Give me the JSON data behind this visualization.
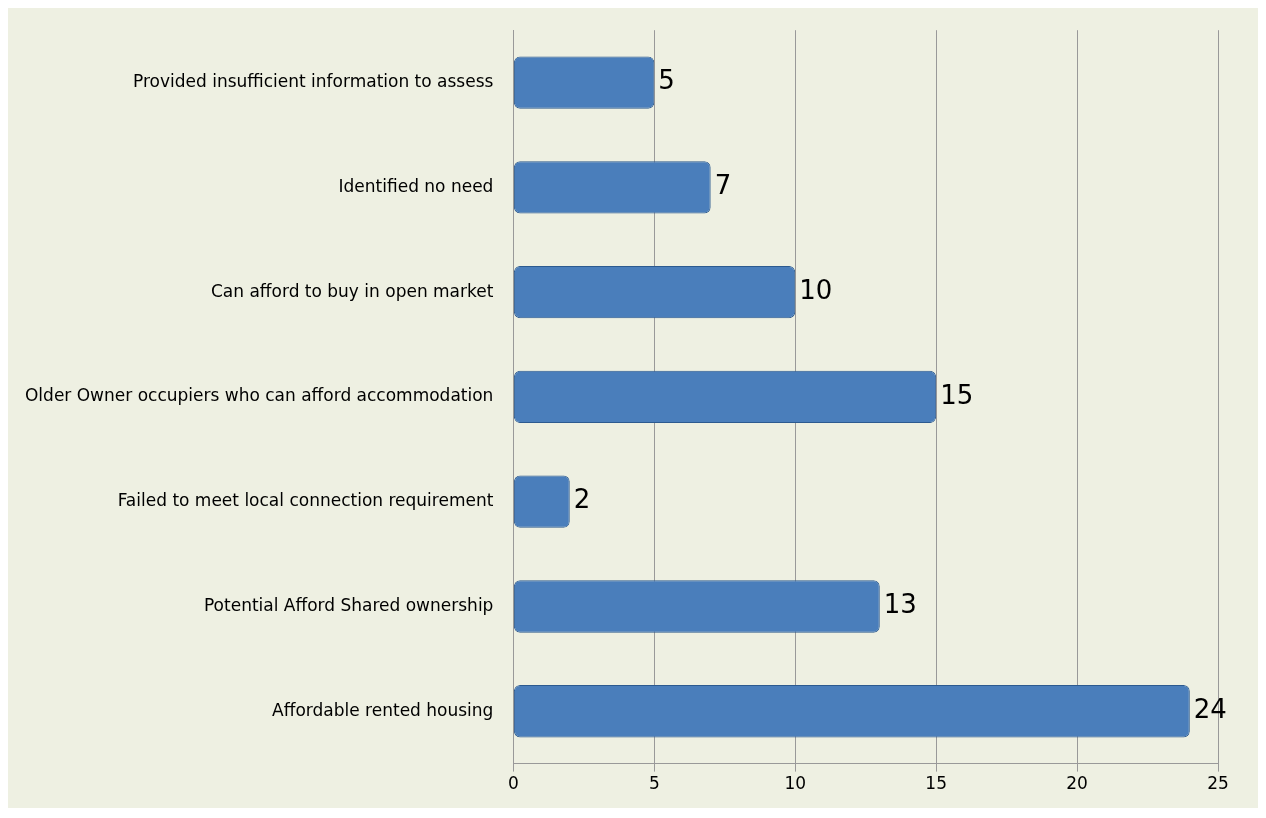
{
  "chart_data": {
    "type": "bar",
    "orientation": "horizontal",
    "categories": [
      "Provided insufficient information to assess",
      "Identified no need",
      "Can afford to buy in open market",
      "Older Owner occupiers who can afford accommodation",
      "Failed to meet local connection requirement",
      "Potential Afford Shared ownership",
      "Affordable rented housing"
    ],
    "values": [
      5,
      7,
      10,
      15,
      2,
      13,
      24
    ],
    "color": "#4a7ebb",
    "xlim": [
      0,
      25
    ],
    "xticks": [
      0,
      5,
      10,
      15,
      20,
      25
    ],
    "grid": "x",
    "data_labels": true,
    "legend": false
  }
}
